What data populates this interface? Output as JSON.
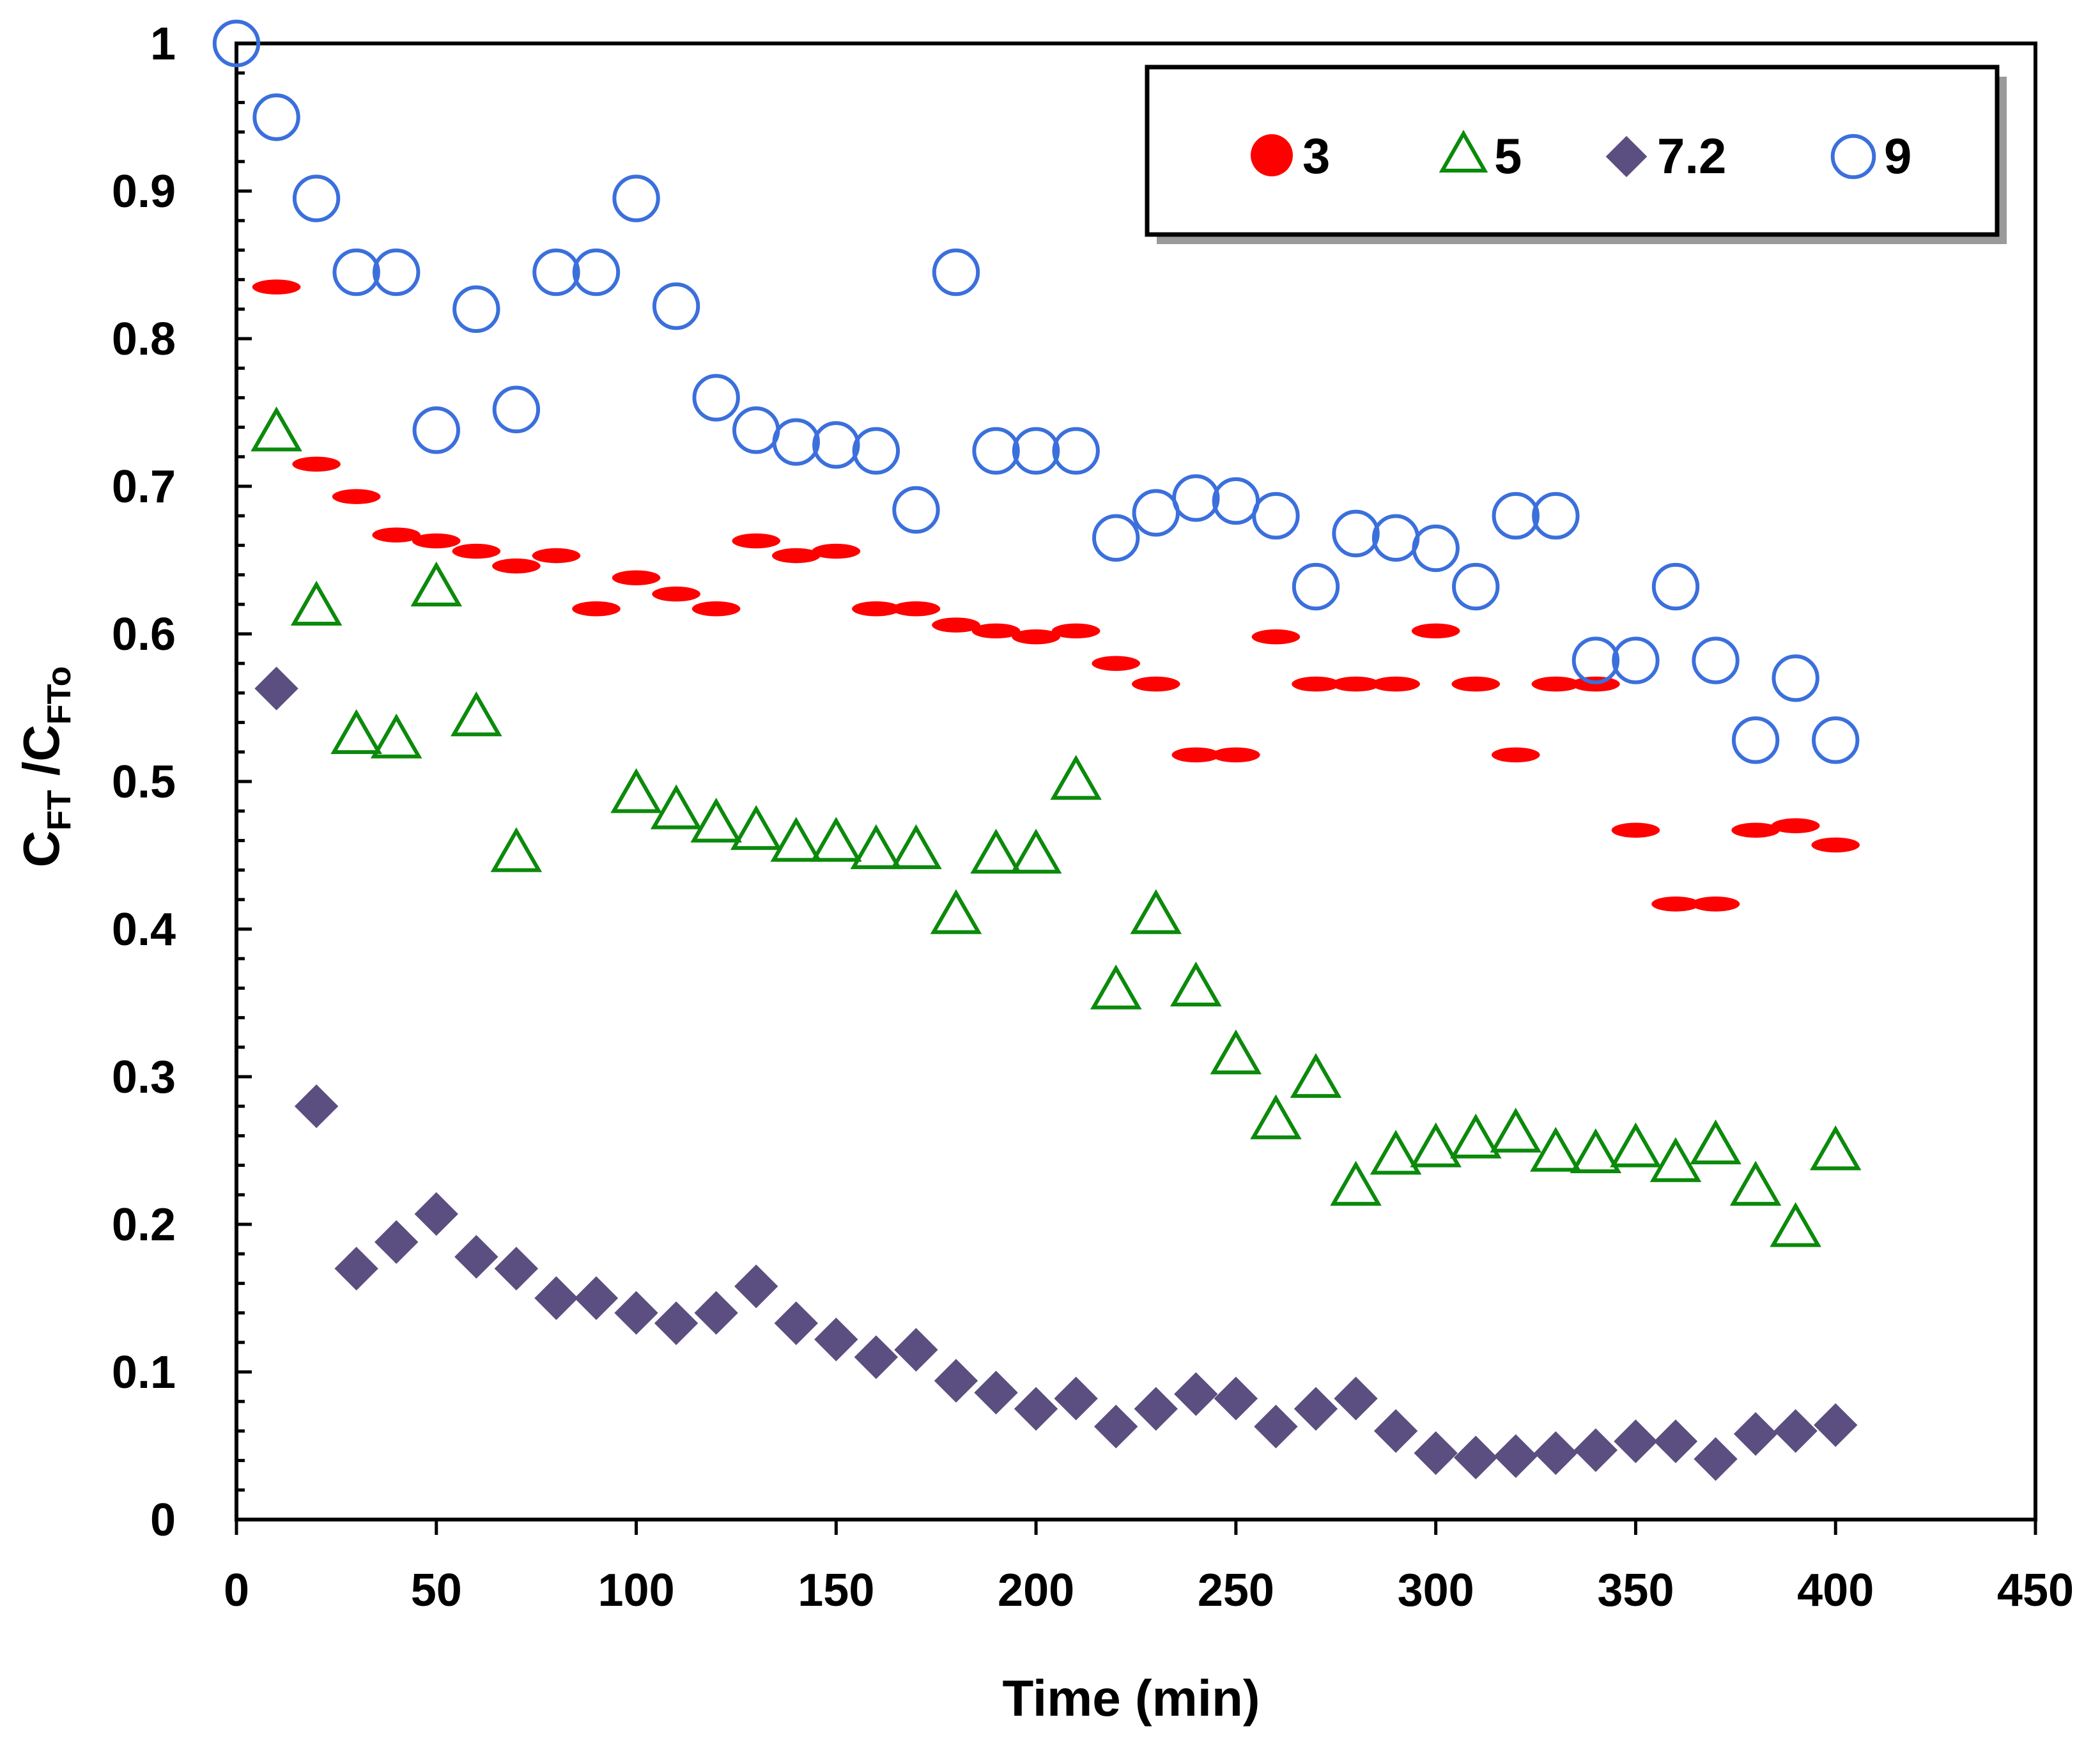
{
  "chart_data": {
    "type": "scatter",
    "xlabel": "Time (min)",
    "ylabel": {
      "main1": "C",
      "sub1": "FT",
      "main2": " /C",
      "sub2": "FTo"
    },
    "xlim": [
      0,
      450
    ],
    "ylim": [
      0,
      1
    ],
    "x_ticks": [
      0,
      50,
      100,
      150,
      200,
      250,
      300,
      350,
      400,
      450
    ],
    "y_ticks": [
      0,
      0.1,
      0.2,
      0.3,
      0.4,
      0.5,
      0.6,
      0.7,
      0.8,
      0.9,
      1
    ],
    "x_tick_labels": [
      "0",
      "50",
      "100",
      "150",
      "200",
      "250",
      "300",
      "350",
      "400",
      "450"
    ],
    "y_tick_labels": [
      "0",
      "0.1",
      "0.2",
      "0.3",
      "0.4",
      "0.5",
      "0.6",
      "0.7",
      "0.8",
      "0.9",
      "1"
    ],
    "legend_position": "top-right",
    "series": [
      {
        "name": "3",
        "marker": "filled-circle",
        "color": "#ff0000",
        "x": [
          10,
          20,
          30,
          40,
          50,
          60,
          70,
          80,
          90,
          100,
          110,
          120,
          130,
          140,
          150,
          160,
          170,
          180,
          190,
          200,
          210,
          220,
          230,
          240,
          250,
          260,
          270,
          280,
          290,
          300,
          310,
          320,
          330,
          340,
          350,
          360,
          370,
          380,
          390,
          400
        ],
        "y": [
          0.835,
          0.715,
          0.693,
          0.667,
          0.663,
          0.656,
          0.646,
          0.653,
          0.617,
          0.638,
          0.627,
          0.617,
          0.663,
          0.653,
          0.656,
          0.617,
          0.617,
          0.606,
          0.602,
          0.598,
          0.602,
          0.58,
          0.566,
          0.518,
          0.518,
          0.598,
          0.566,
          0.566,
          0.566,
          0.602,
          0.566,
          0.518,
          0.566,
          0.566,
          0.467,
          0.417,
          0.417,
          0.467,
          0.47,
          0.457
        ]
      },
      {
        "name": "5",
        "marker": "open-triangle",
        "color": "#0b8a0b",
        "x": [
          10,
          20,
          30,
          40,
          50,
          60,
          70,
          100,
          110,
          120,
          130,
          140,
          150,
          160,
          170,
          180,
          190,
          200,
          210,
          220,
          230,
          240,
          250,
          260,
          270,
          280,
          290,
          300,
          310,
          320,
          330,
          340,
          350,
          360,
          370,
          380,
          390,
          400
        ],
        "y": [
          0.735,
          0.617,
          0.53,
          0.527,
          0.63,
          0.542,
          0.45,
          0.49,
          0.479,
          0.47,
          0.465,
          0.457,
          0.457,
          0.452,
          0.452,
          0.408,
          0.449,
          0.449,
          0.499,
          0.357,
          0.408,
          0.359,
          0.313,
          0.269,
          0.297,
          0.224,
          0.245,
          0.25,
          0.256,
          0.26,
          0.247,
          0.246,
          0.25,
          0.24,
          0.252,
          0.224,
          0.196,
          0.248
        ]
      },
      {
        "name": "7.2",
        "marker": "filled-diamond",
        "color": "#5b4e80",
        "x": [
          10,
          20,
          30,
          40,
          50,
          60,
          70,
          80,
          90,
          100,
          110,
          120,
          130,
          140,
          150,
          160,
          170,
          180,
          190,
          200,
          210,
          220,
          230,
          240,
          250,
          260,
          270,
          280,
          290,
          300,
          310,
          320,
          330,
          340,
          350,
          360,
          370,
          380,
          390,
          400
        ],
        "y": [
          0.563,
          0.28,
          0.17,
          0.188,
          0.207,
          0.178,
          0.17,
          0.15,
          0.15,
          0.14,
          0.133,
          0.14,
          0.158,
          0.133,
          0.122,
          0.11,
          0.115,
          0.094,
          0.086,
          0.075,
          0.082,
          0.063,
          0.075,
          0.085,
          0.082,
          0.063,
          0.075,
          0.082,
          0.06,
          0.045,
          0.042,
          0.043,
          0.045,
          0.047,
          0.053,
          0.053,
          0.041,
          0.058,
          0.06,
          0.064
        ]
      },
      {
        "name": "9",
        "marker": "open-circle",
        "color": "#3b6fdc",
        "x": [
          0,
          10,
          20,
          30,
          40,
          50,
          60,
          70,
          80,
          90,
          100,
          110,
          120,
          130,
          140,
          150,
          160,
          170,
          180,
          190,
          200,
          210,
          220,
          230,
          240,
          250,
          260,
          270,
          280,
          290,
          300,
          310,
          320,
          330,
          340,
          350,
          360,
          370,
          380,
          390,
          400
        ],
        "y": [
          1.0,
          0.95,
          0.895,
          0.845,
          0.845,
          0.738,
          0.82,
          0.752,
          0.845,
          0.845,
          0.895,
          0.822,
          0.76,
          0.738,
          0.73,
          0.728,
          0.724,
          0.684,
          0.845,
          0.724,
          0.724,
          0.724,
          0.665,
          0.682,
          0.692,
          0.69,
          0.68,
          0.632,
          0.668,
          0.665,
          0.658,
          0.632,
          0.68,
          0.68,
          0.582,
          0.582,
          0.632,
          0.582,
          0.528,
          0.57,
          0.528
        ]
      }
    ]
  }
}
